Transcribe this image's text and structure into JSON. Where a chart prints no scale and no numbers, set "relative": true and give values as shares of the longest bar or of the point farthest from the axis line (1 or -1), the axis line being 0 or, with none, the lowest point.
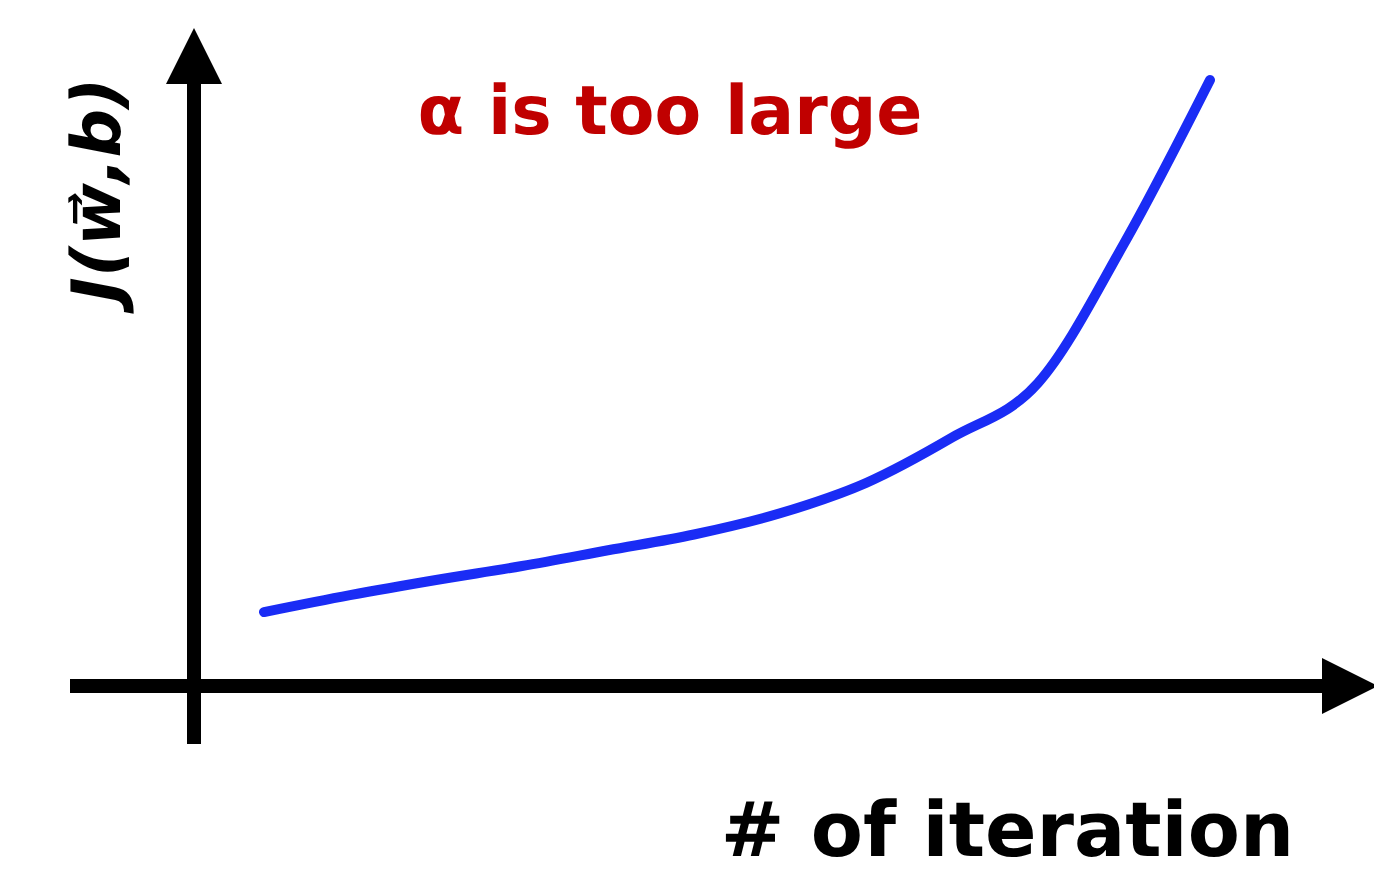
{
  "chart_data": {
    "type": "line",
    "relative": true,
    "title": "α is too large",
    "xlabel": "# of iteration",
    "ylabel": "J(w⃗,b)",
    "line_style": "solid",
    "categories": [
      null,
      null,
      null,
      null,
      null,
      null,
      null,
      null,
      null,
      null,
      null,
      null
    ],
    "series": [
      {
        "color": "#1a2cf5",
        "values": [
          0.122,
          0.15,
          0.175,
          0.198,
          0.224,
          0.25,
          0.285,
          0.335,
          0.41,
          0.5,
          0.73,
          1
        ]
      }
    ]
  }
}
